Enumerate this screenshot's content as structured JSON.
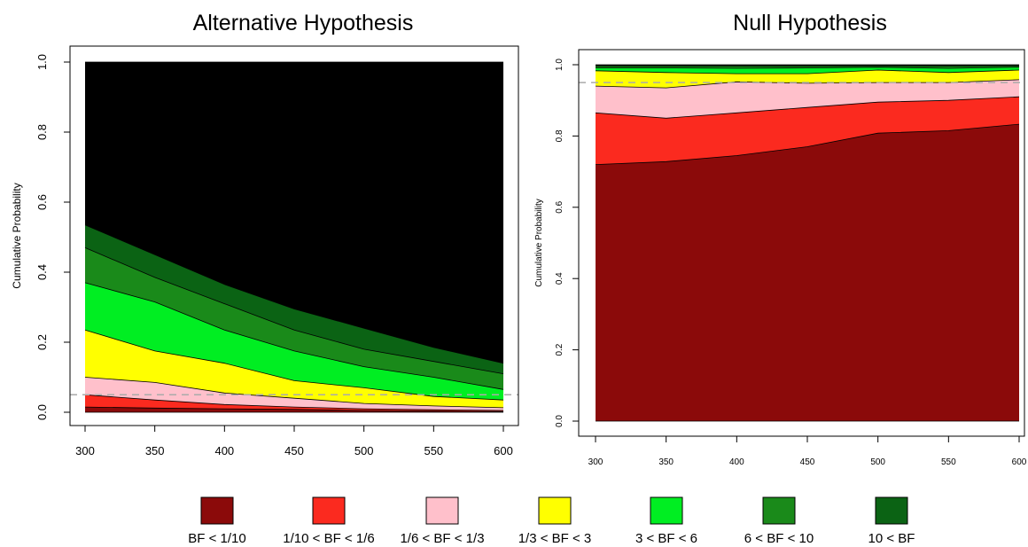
{
  "chart_data": [
    {
      "type": "area",
      "title": "Alternative Hypothesis",
      "ylabel": "Cumulative Probability",
      "xlabel": "",
      "x": [
        300,
        350,
        400,
        450,
        500,
        550,
        600
      ],
      "xticks": [
        "300",
        "350",
        "400",
        "450",
        "500",
        "550",
        "600"
      ],
      "yticks": [
        "0.0",
        "0.2",
        "0.4",
        "0.6",
        "0.8",
        "1.0"
      ],
      "xlim": [
        300,
        600
      ],
      "ylim": [
        0,
        1
      ],
      "threshold": 0.05,
      "cumulative": [
        [
          0.015,
          0.012,
          0.01,
          0.008,
          0.005,
          0.003,
          0.002
        ],
        [
          0.05,
          0.035,
          0.022,
          0.015,
          0.01,
          0.007,
          0.005
        ],
        [
          0.1,
          0.085,
          0.055,
          0.04,
          0.025,
          0.018,
          0.013
        ],
        [
          0.235,
          0.175,
          0.14,
          0.09,
          0.07,
          0.045,
          0.035
        ],
        [
          0.37,
          0.315,
          0.235,
          0.175,
          0.13,
          0.1,
          0.065
        ],
        [
          0.47,
          0.385,
          0.31,
          0.235,
          0.18,
          0.145,
          0.11
        ],
        [
          0.535,
          0.45,
          0.365,
          0.295,
          0.24,
          0.185,
          0.14
        ],
        [
          1,
          1,
          1,
          1,
          1,
          1,
          1
        ]
      ]
    },
    {
      "type": "area",
      "title": "Null Hypothesis",
      "ylabel": "Cumulative Probability",
      "xlabel": "",
      "x": [
        300,
        350,
        400,
        450,
        500,
        550,
        600
      ],
      "xticks": [
        "300",
        "350",
        "400",
        "450",
        "500",
        "550",
        "600"
      ],
      "yticks": [
        "0.0",
        "0.2",
        "0.4",
        "0.6",
        "0.8",
        "1.0"
      ],
      "xlim": [
        300,
        600
      ],
      "ylim": [
        0,
        1
      ],
      "threshold": 0.95,
      "cumulative": [
        [
          0.72,
          0.728,
          0.745,
          0.77,
          0.808,
          0.815,
          0.833
        ],
        [
          0.865,
          0.85,
          0.865,
          0.88,
          0.895,
          0.9,
          0.91
        ],
        [
          0.94,
          0.935,
          0.952,
          0.948,
          0.95,
          0.95,
          0.958
        ],
        [
          0.983,
          0.978,
          0.975,
          0.975,
          0.985,
          0.978,
          0.985
        ],
        [
          0.991,
          0.991,
          0.99,
          0.991,
          0.993,
          0.99,
          0.993
        ],
        [
          0.996,
          0.996,
          0.996,
          0.996,
          0.997,
          0.996,
          0.997
        ],
        [
          0.999,
          0.999,
          0.999,
          0.999,
          0.999,
          0.999,
          0.999
        ],
        [
          1,
          1,
          1,
          1,
          1,
          1,
          1
        ]
      ]
    }
  ],
  "legend": [
    {
      "label": "BF < 1/10",
      "color": "#8b0a0a"
    },
    {
      "label": "1/10 < BF < 1/6",
      "color": "#fb2a1f"
    },
    {
      "label": "1/6 < BF < 1/3",
      "color": "#ffc0cb"
    },
    {
      "label": "1/3 < BF < 3",
      "color": "#ffff00"
    },
    {
      "label": "3 < BF < 6",
      "color": "#00ee22"
    },
    {
      "label": "6 < BF < 10",
      "color": "#1a8a1a"
    },
    {
      "label": "10 < BF",
      "color": "#0b6314"
    }
  ]
}
